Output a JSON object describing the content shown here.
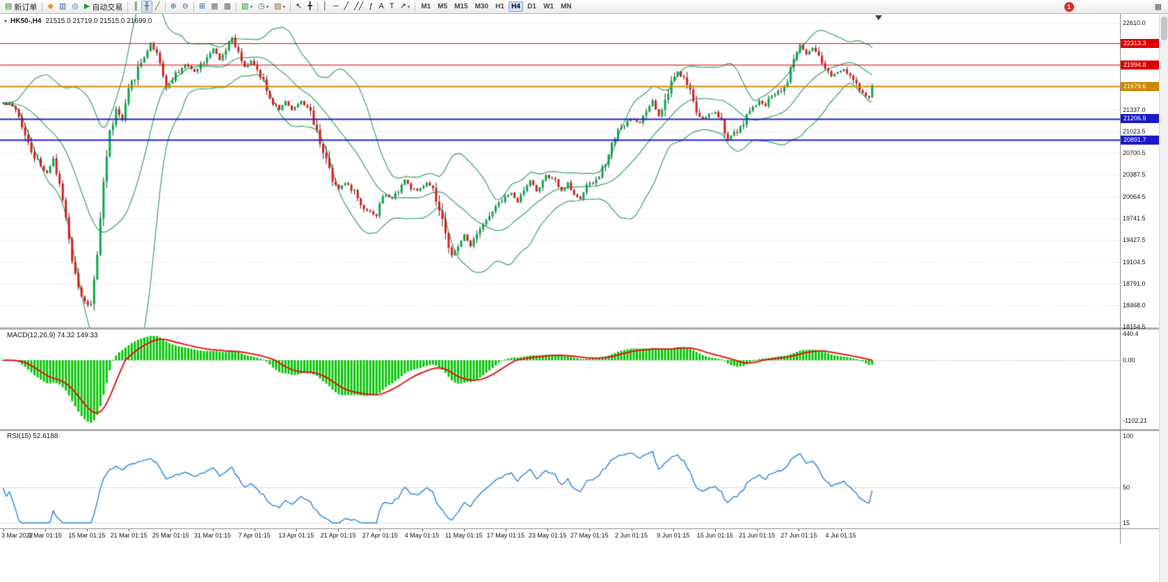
{
  "toolbar": {
    "notification_count": "1",
    "caret_glyph": "▾",
    "icons": {
      "one_click": "▾",
      "overflow": "▦"
    },
    "timeframes": [
      "M1",
      "M5",
      "M15",
      "M30",
      "H1",
      "H4",
      "D1",
      "W1",
      "MN"
    ],
    "active_timeframe": "H4",
    "buttons": [
      {
        "name": "new-order-button",
        "glyph": "▤",
        "color": "#2E7D32",
        "label": "新订单"
      },
      {
        "sep": true
      },
      {
        "name": "market-watch-button",
        "glyph": "◆",
        "color": "#D99A20"
      },
      {
        "name": "data-window-button",
        "glyph": "▥",
        "color": "#33689C"
      },
      {
        "name": "navigator-button",
        "glyph": "◎",
        "color": "#2B7A78"
      },
      {
        "name": "auto-trading-button",
        "glyph": "▶",
        "color": "#1BA12B",
        "label": "自动交易"
      },
      {
        "sep": true
      },
      {
        "name": "bar-chart-button",
        "glyph": "║",
        "color": "#444444"
      },
      {
        "name": "candlestick-button",
        "glyph": "╫",
        "color": "#444444",
        "active": true
      },
      {
        "name": "line-chart-button",
        "glyph": "╱",
        "color": "#2A7F3F"
      },
      {
        "sep": true
      },
      {
        "name": "zoom-in-button",
        "glyph": "⊕",
        "color": "#33689C"
      },
      {
        "name": "zoom-out-button",
        "glyph": "⊖",
        "color": "#33689C"
      },
      {
        "sep": true
      },
      {
        "name": "tile-windows-button",
        "glyph": "⊞",
        "color": "#33689C"
      },
      {
        "name": "indicators-list-button",
        "glyph": "▦",
        "color": "#6A6A6A"
      },
      {
        "name": "stack-windows-button",
        "glyph": "▩",
        "color": "#6A6A6A"
      },
      {
        "sep": true
      },
      {
        "name": "new-chart-button",
        "glyph": "▧",
        "color": "#1BA12B",
        "caret": true
      },
      {
        "name": "periods-button",
        "glyph": "◷",
        "color": "#33689C",
        "caret": true
      },
      {
        "name": "templates-button",
        "glyph": "▨",
        "color": "#8A6D3B",
        "caret": true
      },
      {
        "sep": true
      },
      {
        "name": "cursor-button",
        "glyph": "↖",
        "color": "#222222"
      },
      {
        "name": "crosshair-button",
        "glyph": "╋",
        "color": "#222222"
      },
      {
        "sep": true
      },
      {
        "name": "vertical-line-button",
        "glyph": "│",
        "color": "#222222"
      },
      {
        "name": "horizontal-line-button",
        "glyph": "─",
        "color": "#222222"
      },
      {
        "name": "trendline-button",
        "glyph": "╱",
        "color": "#222222"
      },
      {
        "name": "channel-button",
        "glyph": "╱╱",
        "color": "#222222"
      },
      {
        "name": "fibonacci-button",
        "glyph": "ƒ",
        "color": "#222222"
      },
      {
        "name": "text-button",
        "glyph": "A",
        "color": "#222222"
      },
      {
        "name": "label-button",
        "glyph": "T",
        "color": "#222222"
      },
      {
        "name": "arrows-button",
        "glyph": "↗",
        "color": "#222222",
        "caret": true
      }
    ]
  },
  "chart": {
    "symbol_period": "HK50-,H4",
    "ohlc_text": "21515.0 21719.0 21515.0 21699.0",
    "price_axis": [
      "22610.0",
      "21337.0",
      "21023.5",
      "20700.5",
      "20387.5",
      "20064.5",
      "19741.5",
      "19427.5",
      "19104.5",
      "18791.0",
      "18468.0",
      "18154.5"
    ]
  },
  "macd": {
    "label": "MACD(12,26,9) 74.32 149.33",
    "axis": [
      "440.4",
      "0.00",
      "-1102.21"
    ]
  },
  "rsi": {
    "label": "RSI(15) 52.6188",
    "axis": [
      "100",
      "50",
      "15"
    ]
  },
  "chart_data": {
    "type": "candlestick",
    "symbol": "HK50-",
    "timeframe": "H4",
    "last_quote": {
      "open": 21515.0,
      "high": 21719.0,
      "low": 21515.0,
      "close": 21699.0
    },
    "candle_count": 278,
    "y_axis": {
      "max": 22742,
      "min": 18144,
      "hidden_ticks": [
        22291.8,
        21973.5,
        21655.3
      ]
    },
    "colors": {
      "up": "#00A845",
      "down": "#DD1515",
      "wick": "#222222",
      "bollinger": "#2E9E5B",
      "macd_hist": "#00C400",
      "macd_signal": "#E01010",
      "rsi": "#1F7FD4",
      "grid": "#CFCFCF"
    },
    "levels": [
      {
        "price": 22313.3,
        "label": "22313.3",
        "color": "#DE0000",
        "width": 1
      },
      {
        "price": 21994.8,
        "label": "21994.8",
        "color": "#DE0000",
        "width": 1
      },
      {
        "price": 21679.6,
        "label": "21679.6",
        "color": "#CC8800",
        "width": 2
      },
      {
        "price": 21206.9,
        "label": "21206.9",
        "color": "#1919CC",
        "width": 2
      },
      {
        "price": 20891.7,
        "label": "20891.7",
        "color": "#1919CC",
        "width": 2
      }
    ],
    "indicators": {
      "bollinger": {
        "period": 20,
        "deviation": 2
      },
      "macd": {
        "fast": 12,
        "slow": 26,
        "signal": 9,
        "value": 74.32,
        "signal_value": 149.33,
        "min": -1102.21,
        "max": 440.4
      },
      "rsi": {
        "period": 15,
        "value": 52.6188,
        "scale_min": 15,
        "scale_max": 100,
        "level": 50
      }
    },
    "price_anchors": [
      [
        0,
        21430
      ],
      [
        3,
        21390
      ],
      [
        6,
        21120
      ],
      [
        9,
        20760
      ],
      [
        12,
        20500
      ],
      [
        14,
        20420
      ],
      [
        16,
        20620
      ],
      [
        18,
        20270
      ],
      [
        20,
        19700
      ],
      [
        22,
        19150
      ],
      [
        24,
        18780
      ],
      [
        26,
        18520
      ],
      [
        28,
        18440
      ],
      [
        30,
        19150
      ],
      [
        32,
        20300
      ],
      [
        34,
        21000
      ],
      [
        36,
        21330
      ],
      [
        38,
        21180
      ],
      [
        40,
        21580
      ],
      [
        42,
        21840
      ],
      [
        45,
        22130
      ],
      [
        47,
        22300
      ],
      [
        49,
        22180
      ],
      [
        51,
        21880
      ],
      [
        52,
        21650
      ],
      [
        55,
        21860
      ],
      [
        58,
        22000
      ],
      [
        61,
        21900
      ],
      [
        64,
        22060
      ],
      [
        67,
        22240
      ],
      [
        69,
        22060
      ],
      [
        71,
        22200
      ],
      [
        73,
        22390
      ],
      [
        75,
        22140
      ],
      [
        77,
        21950
      ],
      [
        79,
        22060
      ],
      [
        81,
        21890
      ],
      [
        83,
        21740
      ],
      [
        85,
        21500
      ],
      [
        88,
        21340
      ],
      [
        90,
        21460
      ],
      [
        92,
        21340
      ],
      [
        95,
        21460
      ],
      [
        97,
        21390
      ],
      [
        99,
        21140
      ],
      [
        101,
        20880
      ],
      [
        103,
        20640
      ],
      [
        105,
        20330
      ],
      [
        107,
        20190
      ],
      [
        109,
        20260
      ],
      [
        112,
        20140
      ],
      [
        114,
        19940
      ],
      [
        117,
        19840
      ],
      [
        119,
        19790
      ],
      [
        121,
        20090
      ],
      [
        124,
        20040
      ],
      [
        126,
        20160
      ],
      [
        128,
        20310
      ],
      [
        130,
        20190
      ],
      [
        132,
        20140
      ],
      [
        135,
        20260
      ],
      [
        137,
        20140
      ],
      [
        139,
        19840
      ],
      [
        141,
        19480
      ],
      [
        143,
        19230
      ],
      [
        145,
        19300
      ],
      [
        147,
        19510
      ],
      [
        149,
        19340
      ],
      [
        151,
        19560
      ],
      [
        154,
        19710
      ],
      [
        157,
        19900
      ],
      [
        160,
        20060
      ],
      [
        162,
        20110
      ],
      [
        164,
        19990
      ],
      [
        166,
        20160
      ],
      [
        168,
        20310
      ],
      [
        170,
        20140
      ],
      [
        173,
        20360
      ],
      [
        176,
        20290
      ],
      [
        178,
        20140
      ],
      [
        180,
        20260
      ],
      [
        182,
        20090
      ],
      [
        184,
        20040
      ],
      [
        186,
        20210
      ],
      [
        188,
        20260
      ],
      [
        190,
        20360
      ],
      [
        193,
        20710
      ],
      [
        196,
        21060
      ],
      [
        198,
        21110
      ],
      [
        200,
        21210
      ],
      [
        203,
        21140
      ],
      [
        205,
        21310
      ],
      [
        207,
        21460
      ],
      [
        209,
        21240
      ],
      [
        211,
        21460
      ],
      [
        213,
        21760
      ],
      [
        215,
        21900
      ],
      [
        217,
        21790
      ],
      [
        219,
        21640
      ],
      [
        221,
        21340
      ],
      [
        223,
        21190
      ],
      [
        225,
        21260
      ],
      [
        227,
        21310
      ],
      [
        229,
        21140
      ],
      [
        231,
        20890
      ],
      [
        233,
        21010
      ],
      [
        235,
        21060
      ],
      [
        237,
        21260
      ],
      [
        239,
        21360
      ],
      [
        241,
        21460
      ],
      [
        243,
        21410
      ],
      [
        245,
        21560
      ],
      [
        247,
        21610
      ],
      [
        249,
        21660
      ],
      [
        251,
        21890
      ],
      [
        252,
        22060
      ],
      [
        254,
        22290
      ],
      [
        256,
        22140
      ],
      [
        258,
        22240
      ],
      [
        260,
        22090
      ],
      [
        262,
        21940
      ],
      [
        264,
        21840
      ],
      [
        266,
        21890
      ],
      [
        268,
        21940
      ],
      [
        270,
        21840
      ],
      [
        272,
        21690
      ],
      [
        274,
        21560
      ],
      [
        276,
        21520
      ],
      [
        277,
        21699
      ]
    ],
    "x_axis_labels": [
      "3 Mar 2022",
      "9 Mar 01:15",
      "15 Mar 01:15",
      "21 Mar 01:15",
      "25 Mar 01:15",
      "31 Mar 01:15",
      "7 Apr 01:15",
      "13 Apr 01:15",
      "21 Apr 01:15",
      "27 Apr 01:15",
      "4 May 01:15",
      "11 May 01:15",
      "17 May 01:15",
      "23 May 01:15",
      "27 May 01:15",
      "2 Jun 01:15",
      "9 Jun 01:15",
      "15 Jun 01:15",
      "21 Jun 01:15",
      "27 Jun 01:15",
      "4 Jul 01:15"
    ]
  }
}
